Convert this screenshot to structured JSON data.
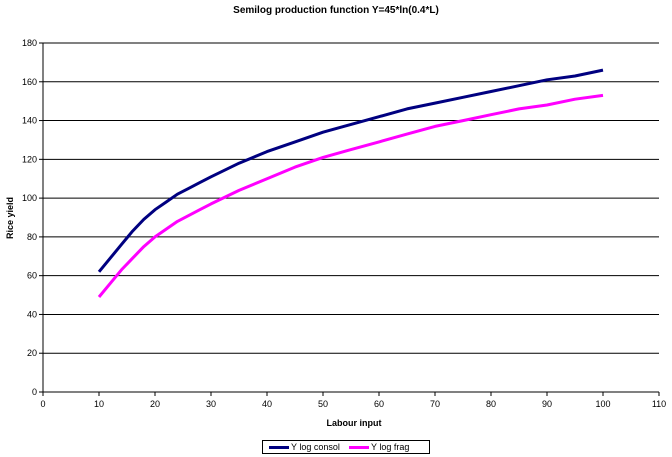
{
  "chart_data": {
    "type": "line",
    "title": "Semilog production function Y=45*ln(0.4*L)",
    "xlabel": "Labour input",
    "ylabel": "Rice yield",
    "xlim": [
      0,
      110
    ],
    "ylim": [
      0,
      180
    ],
    "xticks": [
      0,
      10,
      20,
      30,
      40,
      50,
      60,
      70,
      80,
      90,
      100,
      110
    ],
    "yticks": [
      0,
      20,
      40,
      60,
      80,
      100,
      120,
      140,
      160,
      180
    ],
    "grid": "horizontal",
    "legend_position": "bottom",
    "series": [
      {
        "name": "Y log consol",
        "color": "#000080",
        "x": [
          10,
          12,
          14,
          16,
          18,
          20,
          22,
          24,
          26,
          28,
          30,
          35,
          40,
          45,
          50,
          55,
          60,
          65,
          70,
          75,
          80,
          85,
          90,
          95,
          100
        ],
        "y": [
          62,
          69,
          76,
          83,
          89,
          94,
          98,
          102,
          105,
          108,
          111,
          118,
          124,
          129,
          134,
          138,
          142,
          146,
          149,
          152,
          155,
          158,
          161,
          163,
          166
        ]
      },
      {
        "name": "Y log frag",
        "color": "#FF00FF",
        "x": [
          10,
          12,
          14,
          16,
          18,
          20,
          22,
          24,
          26,
          28,
          30,
          35,
          40,
          45,
          50,
          55,
          60,
          65,
          70,
          75,
          80,
          85,
          90,
          95,
          100
        ],
        "y": [
          49,
          56,
          63,
          69,
          75,
          80,
          84,
          88,
          91,
          94,
          97,
          104,
          110,
          116,
          121,
          125,
          129,
          133,
          137,
          140,
          143,
          146,
          148,
          151,
          153
        ]
      }
    ]
  }
}
